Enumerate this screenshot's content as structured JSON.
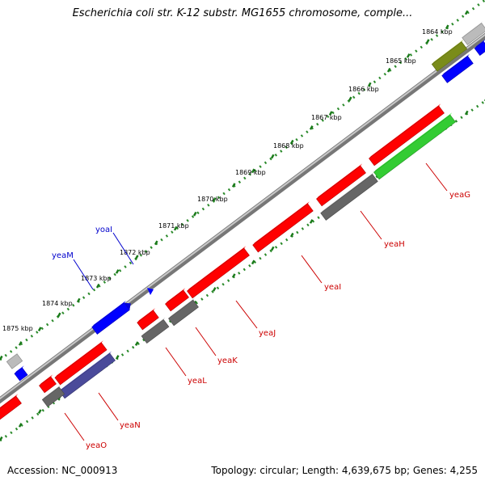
{
  "title": "Escherichia coli str. K-12 substr. MG1655 chromosome, comple...",
  "footer": {
    "accession": "Accession: NC_000913",
    "summary": "Topology: circular; Length: 4,639,675 bp; Genes: 4,255"
  },
  "colors": {
    "forward_cds": "#ff0000",
    "forward_other": "#0000ff",
    "reverse_cds": "#666666",
    "reverse_green": "#33cc33",
    "olive": "#7a8c1a",
    "purple": "#4a4a9a",
    "light_gray": "#bbbbbb",
    "tick": "#2a8a2a",
    "label_red": "#cc0000",
    "label_blue": "#0000cc"
  },
  "ticks": [
    {
      "label": "1864 kbp"
    },
    {
      "label": "1865 kbp"
    },
    {
      "label": "1866 kbp"
    },
    {
      "label": "1867 kbp"
    },
    {
      "label": "1868 kbp"
    },
    {
      "label": "1869 kbp"
    },
    {
      "label": "1870 kbp"
    },
    {
      "label": "1871 kbp"
    },
    {
      "label": "1872 kbp"
    },
    {
      "label": "1873 kbp"
    },
    {
      "label": "1874 kbp"
    },
    {
      "label": "1875 kbp"
    }
  ],
  "gene_labels": [
    {
      "name": "yeaG",
      "color": "label_red"
    },
    {
      "name": "yeaH",
      "color": "label_red"
    },
    {
      "name": "yeaI",
      "color": "label_red"
    },
    {
      "name": "yeaJ",
      "color": "label_red"
    },
    {
      "name": "yeaK",
      "color": "label_red"
    },
    {
      "name": "yeaL",
      "color": "label_red"
    },
    {
      "name": "yeaN",
      "color": "label_red"
    },
    {
      "name": "yeaO",
      "color": "label_red"
    },
    {
      "name": "yoaI",
      "color": "label_blue"
    },
    {
      "name": "yeaM",
      "color": "label_blue"
    }
  ]
}
